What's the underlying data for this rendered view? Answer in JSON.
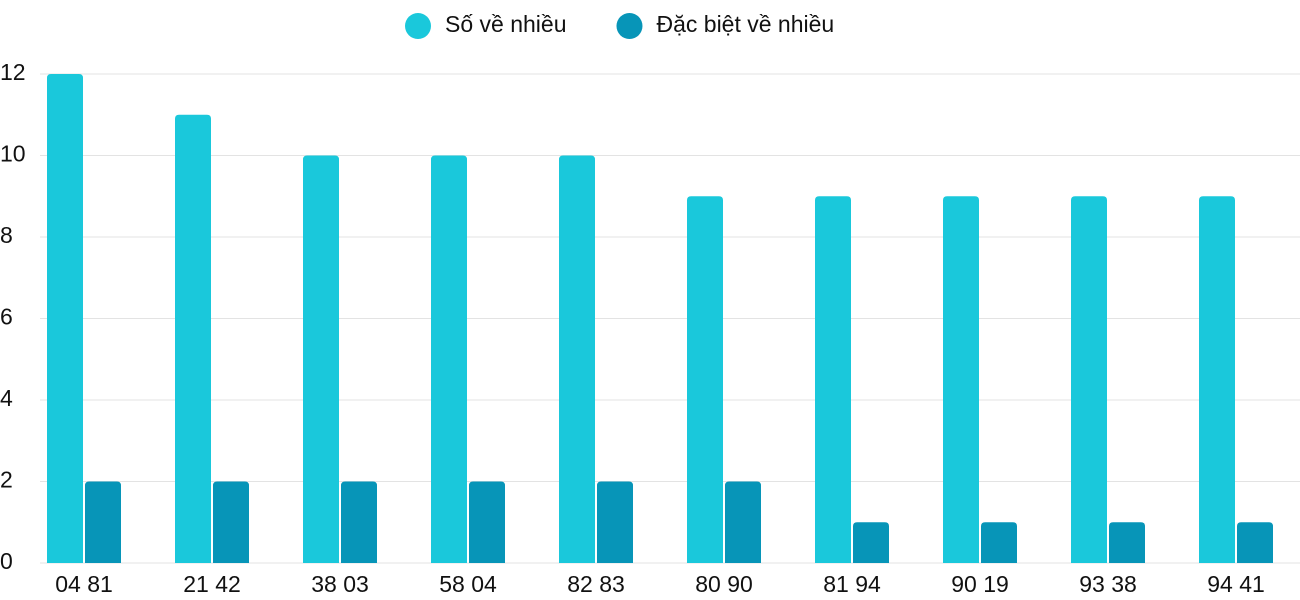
{
  "chart_data": {
    "type": "bar",
    "categories": [
      "04 81",
      "21 42",
      "38 03",
      "58 04",
      "82 83",
      "80 90",
      "81 94",
      "90 19",
      "93 38",
      "94 41"
    ],
    "series": [
      {
        "name": "Số về nhiều",
        "color": "#1ac8db",
        "values": [
          12,
          11,
          10,
          10,
          10,
          9,
          9,
          9,
          9,
          9
        ]
      },
      {
        "name": "Đặc biệt về nhiều",
        "color": "#0795b8",
        "values": [
          2,
          2,
          2,
          2,
          2,
          2,
          1,
          1,
          1,
          1
        ]
      }
    ],
    "ylim": [
      0,
      12
    ],
    "yticks": [
      0,
      2,
      4,
      6,
      8,
      10,
      12
    ],
    "grid": true,
    "legend": "top"
  }
}
